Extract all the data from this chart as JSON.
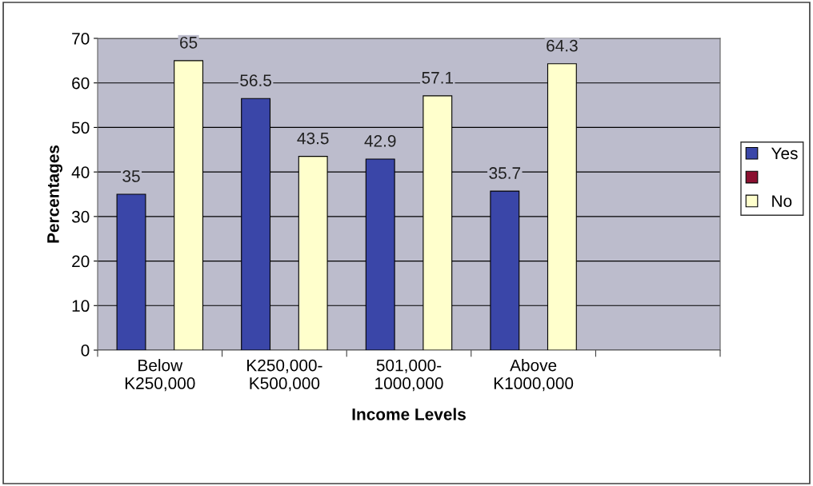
{
  "chart_data": {
    "type": "bar",
    "xlabel": "Income Levels",
    "ylabel": "Percentages",
    "categories": [
      "Below\nK250,000",
      "K250,000-\nK500,000",
      "501,000-\n1000,000",
      "Above\nK1000,000",
      null
    ],
    "series": [
      {
        "name": "Yes",
        "color": "#3a46a8",
        "values": [
          35,
          56.5,
          42.9,
          35.7,
          null
        ]
      },
      {
        "color": "#8b1030",
        "values": [
          null,
          null,
          null,
          null,
          null
        ]
      },
      {
        "name": "No",
        "color": "#ffffcc",
        "values": [
          65,
          43.5,
          57.1,
          64.3,
          null
        ]
      }
    ],
    "ylim": [
      0,
      70
    ],
    "yticks": [
      0,
      10,
      20,
      30,
      40,
      50,
      60,
      70
    ],
    "grid": "y",
    "legend": "right",
    "data_labels": true
  }
}
